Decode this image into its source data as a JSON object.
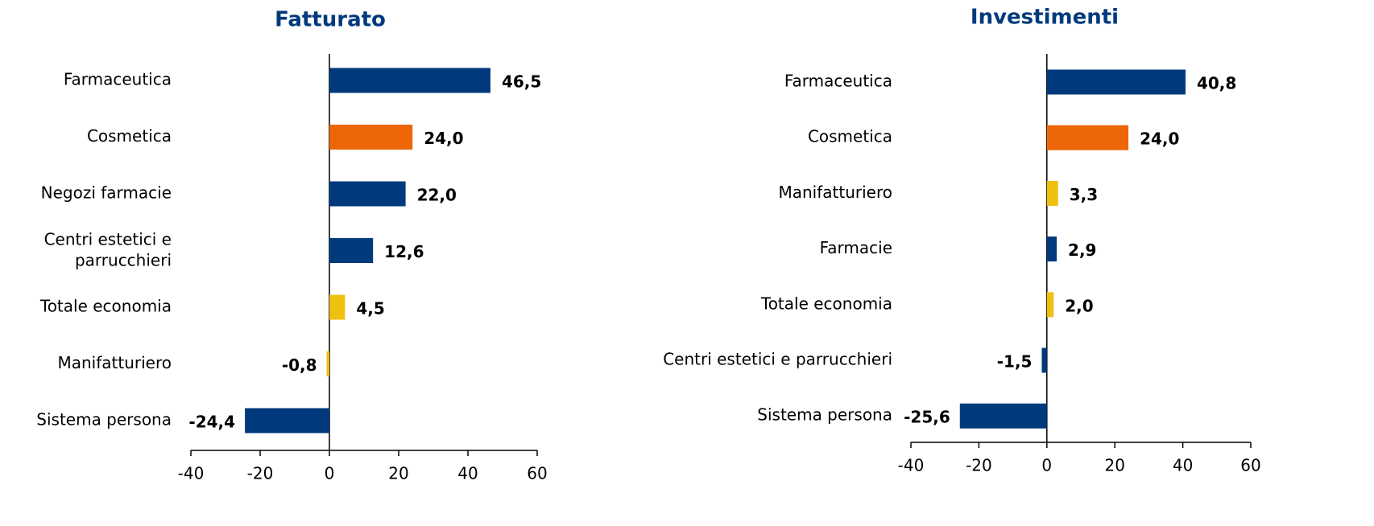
{
  "chart_data": [
    {
      "type": "bar",
      "title": "Fatturato",
      "categories": [
        "Farmaceutica",
        "Cosmetica",
        "Negozi farmacie",
        "Centri estetici e parrucchieri",
        "Totale economia",
        "Manifatturiero",
        "Sistema persona"
      ],
      "values": [
        46.5,
        24.0,
        22.0,
        12.6,
        4.5,
        -0.8,
        -24.4
      ],
      "value_labels": [
        "46,5",
        "24,0",
        "22,0",
        "12,6",
        "4,5",
        "-0,8",
        "-24,4"
      ],
      "colors": [
        "#003a7d",
        "#ec6608",
        "#003a7d",
        "#003a7d",
        "#f0c010",
        "#f0c010",
        "#003a7d"
      ],
      "label_colors": [
        "#003a7d",
        "#ec6608",
        "#003a7d",
        "#003a7d",
        "#000000",
        "#000000",
        "#003a7d"
      ],
      "xlim": [
        -40,
        60
      ],
      "xticks": [
        -40,
        -20,
        0,
        20,
        40,
        60
      ]
    },
    {
      "type": "bar",
      "title": "Investimenti",
      "categories": [
        "Farmaceutica",
        "Cosmetica",
        "Manifatturiero",
        "Farmacie",
        "Totale economia",
        "Centri estetici e parrucchieri",
        "Sistema persona"
      ],
      "values": [
        40.8,
        24.0,
        3.3,
        2.9,
        2.0,
        -1.5,
        -25.6
      ],
      "value_labels": [
        "40,8",
        "24,0",
        "3,3",
        "2,9",
        "2,0",
        "-1,5",
        "-25,6"
      ],
      "colors": [
        "#003a7d",
        "#ec6608",
        "#f0c010",
        "#003a7d",
        "#f0c010",
        "#003a7d",
        "#003a7d"
      ],
      "label_colors": [
        "#003a7d",
        "#ec6608",
        "#000000",
        "#003a7d",
        "#000000",
        "#003a7d",
        "#003a7d"
      ],
      "xlim": [
        -40,
        60
      ],
      "xticks": [
        -40,
        -20,
        0,
        20,
        40,
        60
      ]
    }
  ]
}
